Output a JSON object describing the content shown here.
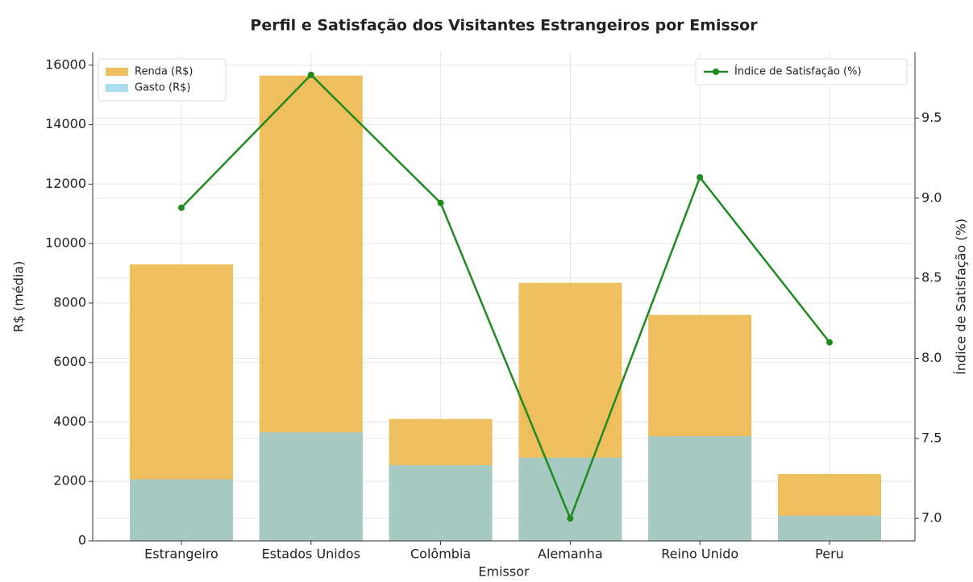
{
  "chart_data": {
    "type": "bar-line",
    "title": "Perfil e Satisfação dos Visitantes Estrangeiros por Emissor",
    "x_label": "Emissor",
    "y_label": "R$ (média)",
    "y2_label": "Índice de Satisfação (%)",
    "categories": [
      "Estrangeiro",
      "Estados Unidos",
      "Colômbia",
      "Alemanha",
      "Reino Unido",
      "Peru"
    ],
    "series": [
      {
        "name": "Renda (R$)",
        "type": "bar",
        "color": "#efbf5e",
        "opacity": 1,
        "values": [
          9300,
          15650,
          4100,
          8680,
          7600,
          2250
        ]
      },
      {
        "name": "Gasto (R$)",
        "type": "bar",
        "color": "#87ceeb",
        "opacity": 0.7,
        "values": [
          2070,
          3650,
          2550,
          2800,
          3520,
          850
        ]
      },
      {
        "name": "Índice de Satisfação (%)",
        "type": "line",
        "axis": "y2",
        "color": "#1f8a1f",
        "values": [
          8.94,
          9.77,
          8.97,
          7.0,
          9.13,
          8.1
        ]
      }
    ],
    "ylim": [
      0,
      16430
    ],
    "yticks": [
      0,
      2000,
      4000,
      6000,
      8000,
      10000,
      12000,
      14000,
      16000
    ],
    "y2lim": [
      6.86,
      9.91
    ],
    "y2ticks": [
      {
        "value": 7,
        "label": "7.0"
      },
      7.5,
      {
        "value": 8,
        "label": "8.0"
      },
      8.5,
      {
        "value": 9,
        "label": "9.0"
      },
      9.5
    ],
    "grid": true,
    "legend": "upper left",
    "legend2": "upper right"
  }
}
